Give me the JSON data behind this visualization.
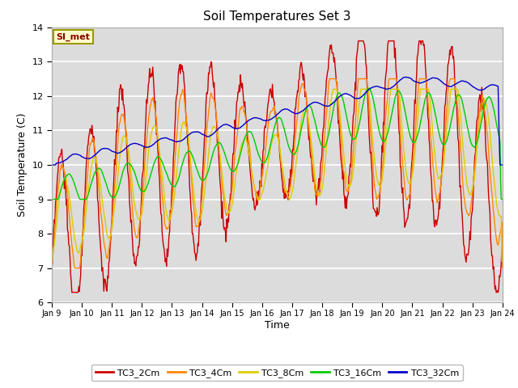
{
  "title": "Soil Temperatures Set 3",
  "xlabel": "Time",
  "ylabel": "Soil Temperature (C)",
  "ylim": [
    6.0,
    14.0
  ],
  "yticks": [
    6.0,
    7.0,
    8.0,
    9.0,
    10.0,
    11.0,
    12.0,
    13.0,
    14.0
  ],
  "bg_color": "#dcdcdc",
  "fig_color": "#ffffff",
  "series_colors": {
    "TC3_2Cm": "#cc0000",
    "TC3_4Cm": "#ff8800",
    "TC3_8Cm": "#ddcc00",
    "TC3_16Cm": "#00cc00",
    "TC3_32Cm": "#0000cc"
  },
  "xtick_labels": [
    "Jan 9",
    "Jan 10",
    "Jan 11",
    "Jan 12",
    "Jan 13",
    "Jan 14",
    "Jan 15",
    "Jan 16",
    "Jan 17",
    "Jan 18",
    "Jan 19",
    "Jan 20",
    "Jan 21",
    "Jan 22",
    "Jan 23",
    "Jan 24"
  ],
  "legend_label": "SI_met",
  "legend_bg": "#ffffcc",
  "legend_border": "#999900"
}
